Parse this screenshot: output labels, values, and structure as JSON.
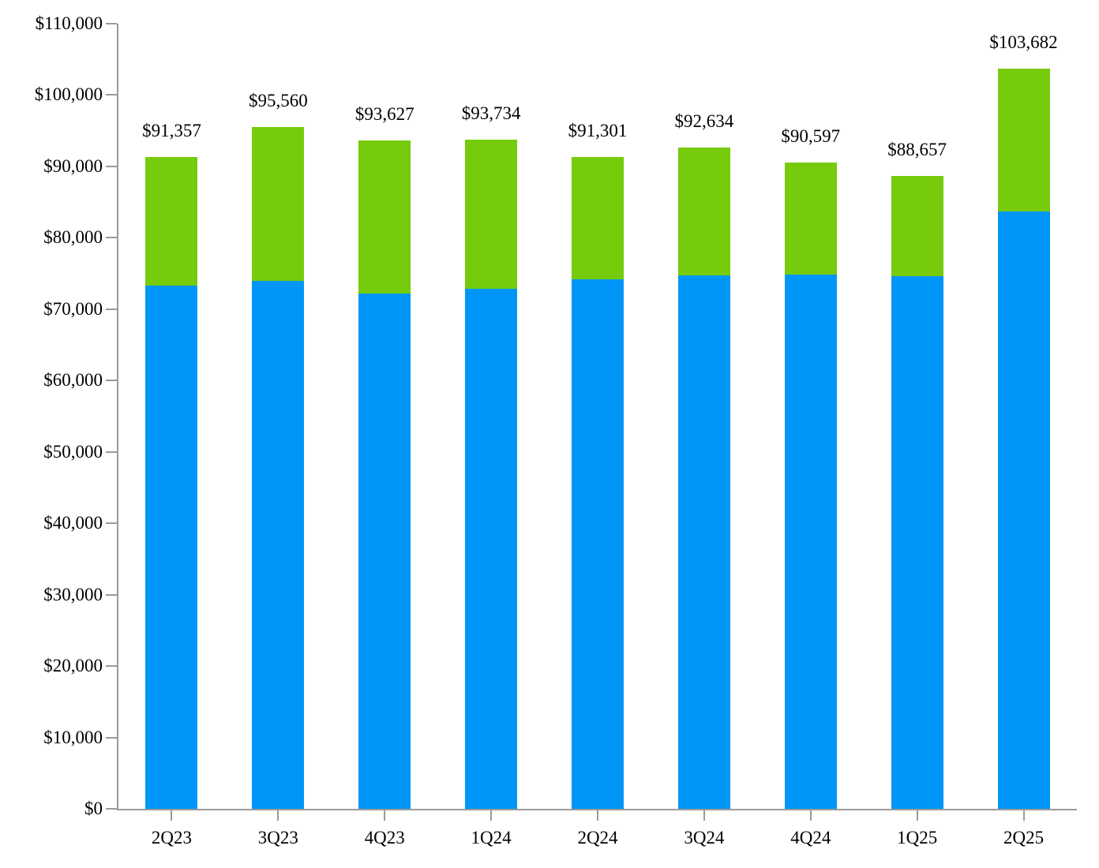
{
  "chart_data": {
    "type": "bar",
    "stacked": true,
    "title": "",
    "xlabel": "",
    "ylabel": "",
    "legend": "none",
    "grid": false,
    "categories": [
      "2Q23",
      "3Q23",
      "4Q23",
      "1Q24",
      "2Q24",
      "3Q24",
      "4Q24",
      "1Q25",
      "2Q25"
    ],
    "series": [
      {
        "name": "bottom-segment",
        "color": "#0096F7",
        "values": [
          73300,
          74000,
          72200,
          72800,
          74200,
          74700,
          74800,
          74600,
          83700
        ]
      },
      {
        "name": "top-segment",
        "color": "#75CB0C",
        "values": [
          18057,
          21560,
          21427,
          20934,
          17101,
          17934,
          15797,
          14057,
          19982
        ]
      }
    ],
    "totals": [
      91357,
      95560,
      93627,
      93734,
      91301,
      92634,
      90597,
      88657,
      103682
    ],
    "total_labels": [
      "$91,357",
      "$95,560",
      "$93,627",
      "$93,734",
      "$91,301",
      "$92,634",
      "$90,597",
      "$88,657",
      "$103,682"
    ],
    "y_axis": {
      "min": 0,
      "max": 110000,
      "step": 10000,
      "tick_labels": [
        "$0",
        "$10,000",
        "$20,000",
        "$30,000",
        "$40,000",
        "$50,000",
        "$60,000",
        "$70,000",
        "$80,000",
        "$90,000",
        "$100,000",
        "$110,000"
      ]
    },
    "axis_color": "#9a9a9a",
    "text_color": "#000000"
  }
}
